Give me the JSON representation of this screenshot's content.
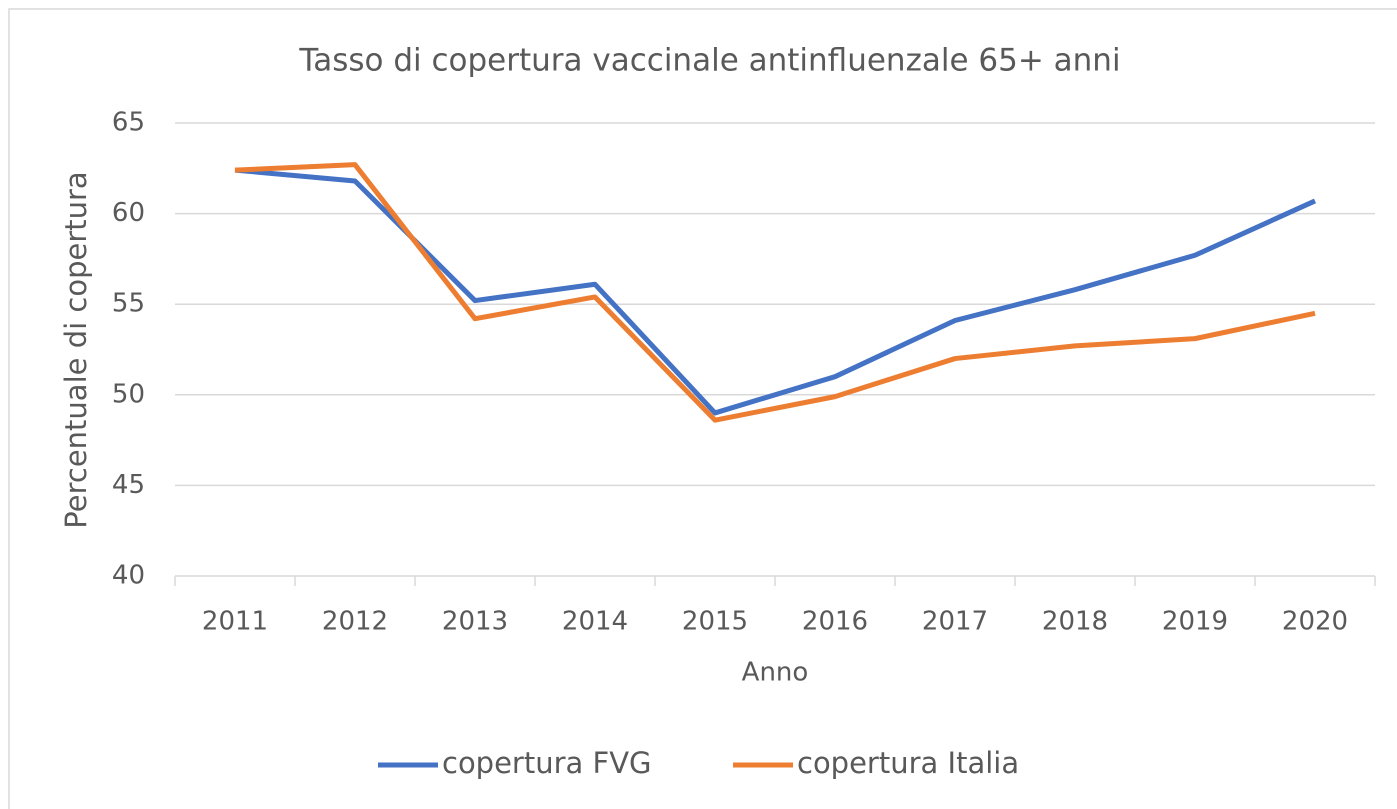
{
  "chart_data": {
    "type": "line",
    "title": "Tasso di copertura vaccinale antinfluenzale 65+ anni",
    "x_label": "Anno",
    "y_label": "Percentuale di copertura",
    "categories": [
      "2011",
      "2012",
      "2013",
      "2014",
      "2015",
      "2016",
      "2017",
      "2018",
      "2019",
      "2020"
    ],
    "series": [
      {
        "name": "copertura FVG",
        "color": "#4472c4",
        "values": [
          62.4,
          61.8,
          55.2,
          56.1,
          49.0,
          51.0,
          54.1,
          55.8,
          57.7,
          60.7
        ]
      },
      {
        "name": "copertura Italia",
        "color": "#ed7d31",
        "values": [
          62.4,
          62.7,
          54.2,
          55.4,
          48.6,
          49.9,
          52.0,
          52.7,
          53.1,
          54.5
        ]
      }
    ],
    "ylim": [
      40,
      65
    ],
    "yticks": [
      40,
      45,
      50,
      55,
      60,
      65
    ],
    "grid": true,
    "legend": "bottom"
  }
}
